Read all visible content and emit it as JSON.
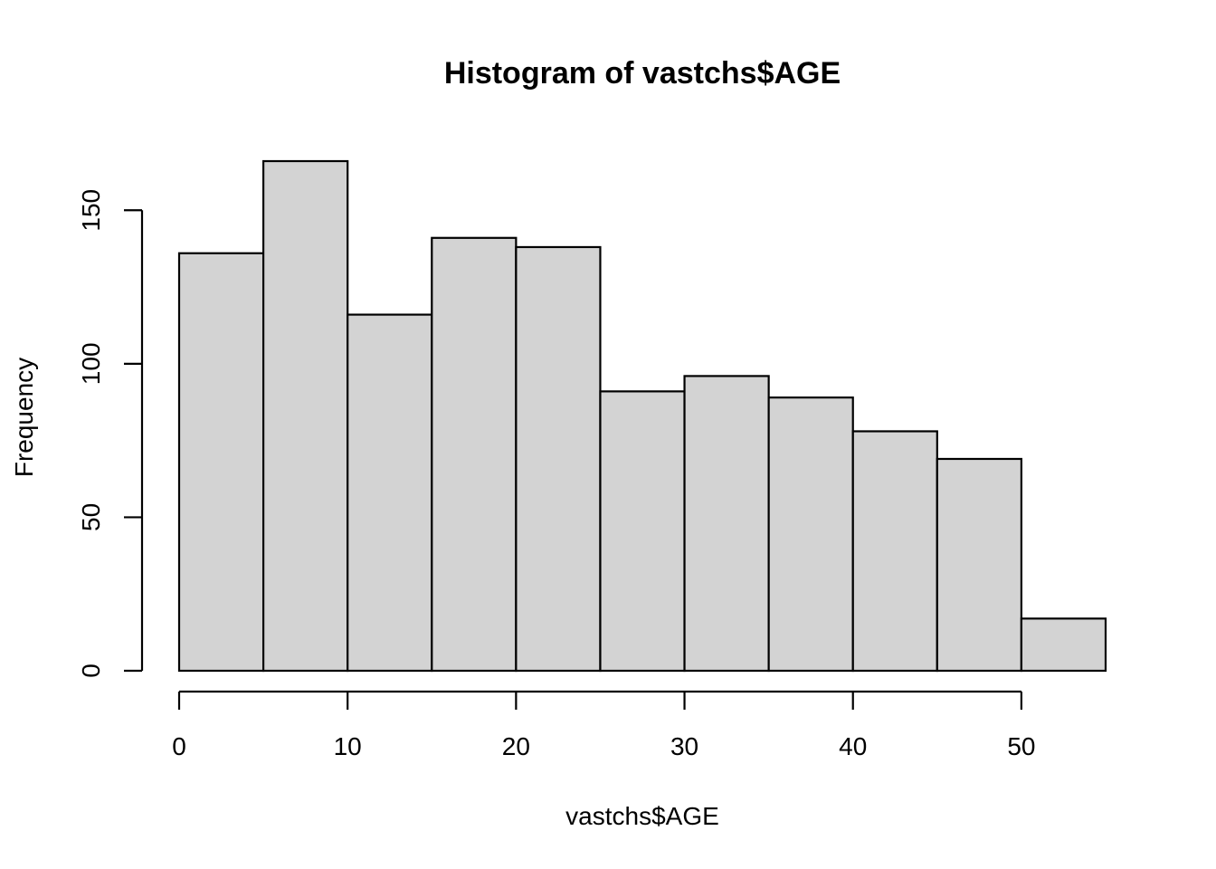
{
  "chart_data": {
    "type": "bar",
    "title": "Histogram of vastchs$AGE",
    "xlabel": "vastchs$AGE",
    "ylabel": "Frequency",
    "bins": [
      {
        "from": 0,
        "to": 5,
        "count": 136
      },
      {
        "from": 5,
        "to": 10,
        "count": 166
      },
      {
        "from": 10,
        "to": 15,
        "count": 116
      },
      {
        "from": 15,
        "to": 20,
        "count": 141
      },
      {
        "from": 20,
        "to": 25,
        "count": 138
      },
      {
        "from": 25,
        "to": 30,
        "count": 91
      },
      {
        "from": 30,
        "to": 35,
        "count": 96
      },
      {
        "from": 35,
        "to": 40,
        "count": 89
      },
      {
        "from": 40,
        "to": 45,
        "count": 78
      },
      {
        "from": 45,
        "to": 50,
        "count": 69
      },
      {
        "from": 50,
        "to": 55,
        "count": 17
      }
    ],
    "xlim": [
      0,
      55
    ],
    "ylim": [
      0,
      166
    ],
    "x_ticks": [
      0,
      10,
      20,
      30,
      40,
      50
    ],
    "y_ticks": [
      0,
      50,
      100,
      150
    ],
    "bar_fill": "#d3d3d3",
    "bar_stroke": "#000000",
    "grid": false,
    "legend": "none"
  }
}
